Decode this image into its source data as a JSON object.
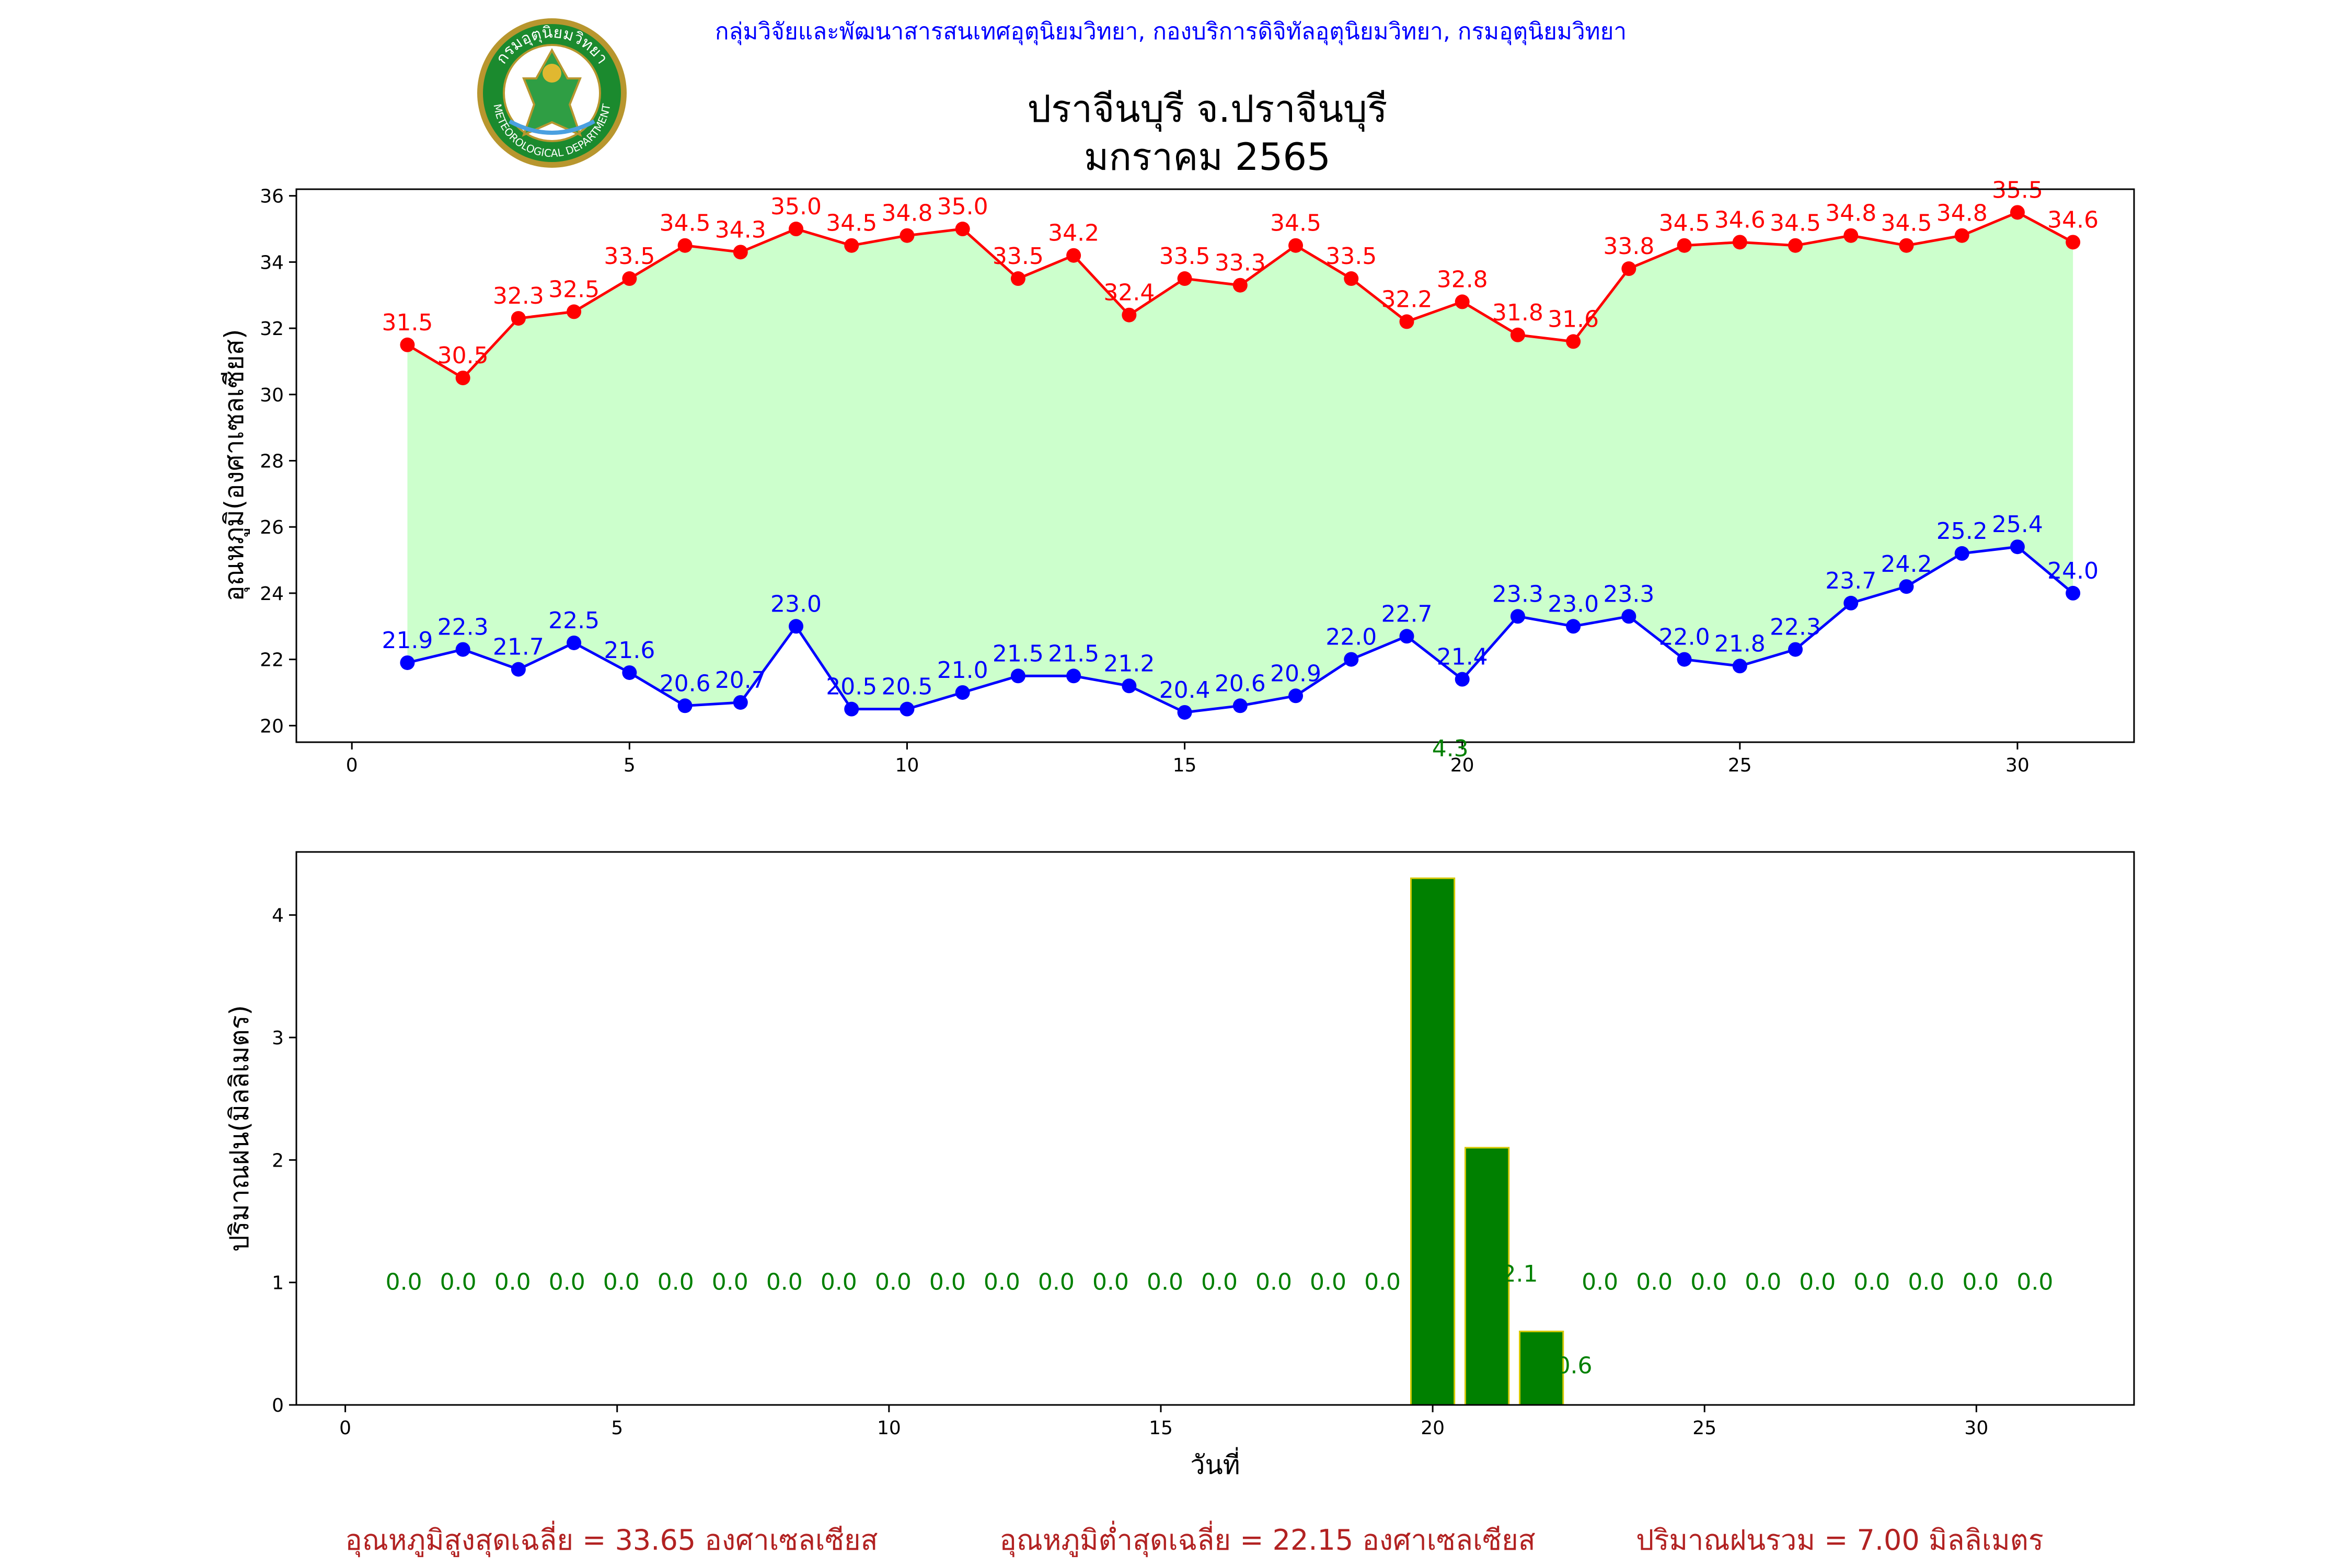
{
  "header": {
    "org_line": "กลุ่มวิจัยและพัฒนาสารสนเทศอุตุนิยมวิทยา, กองบริการดิจิทัลอุตุนิยมวิทยา, กรมอุตุนิยมวิทยา",
    "title_line1": "ปราจีนบุรี จ.ปราจีนบุรี",
    "title_line2": "มกราคม 2565",
    "logo_text_top": "กรมอุตุนิยมวิทยา",
    "logo_text_bottom": "METEOROLOGICAL DEPARTMENT"
  },
  "summary": {
    "avg_max": "อุณหภูมิสูงสุดเฉลี่ย = 33.65 องศาเซลเซียส",
    "avg_min": "อุณหภูมิต่ำสุดเฉลี่ย = 22.15 องศาเซลเซียส",
    "total_rain": "ปริมาณฝนรวม = 7.00 มิลลิเมตร"
  },
  "colors": {
    "max_series": "#ff0000",
    "min_series": "#0000ff",
    "fill_between": "#ccffcc",
    "rain_bar": "#008000",
    "rain_bar_edge": "#d4c800",
    "rain_label": "#008000",
    "header_text": "#0000ff",
    "summary_text": "#b22222"
  },
  "chart_data": [
    {
      "type": "line",
      "title": "ปราจีนบุรี จ.ปราจีนบุรี มกราคม 2565",
      "xlabel": "",
      "ylabel": "อุณหภูมิ(องศาเซลเซียส)",
      "xlim": [
        -1,
        32.1
      ],
      "ylim": [
        19.5,
        36.2
      ],
      "xticks": [
        0,
        5,
        10,
        15,
        20,
        25,
        30
      ],
      "yticks": [
        20,
        22,
        24,
        26,
        28,
        30,
        32,
        34,
        36
      ],
      "x": [
        1,
        2,
        3,
        4,
        5,
        6,
        7,
        8,
        9,
        10,
        11,
        12,
        13,
        14,
        15,
        16,
        17,
        18,
        19,
        20,
        21,
        22,
        23,
        24,
        25,
        26,
        27,
        28,
        29,
        30,
        31
      ],
      "series": [
        {
          "color": "#ff0000",
          "values": [
            31.5,
            30.5,
            32.3,
            32.5,
            33.5,
            34.5,
            34.3,
            35.0,
            34.5,
            34.8,
            35.0,
            33.5,
            34.2,
            32.4,
            33.5,
            33.3,
            34.5,
            33.5,
            32.2,
            32.8,
            31.8,
            31.6,
            33.8,
            34.5,
            34.6,
            34.5,
            34.8,
            34.5,
            34.8,
            35.5,
            34.6
          ]
        },
        {
          "color": "#0000ff",
          "values": [
            21.9,
            22.3,
            21.7,
            22.5,
            21.6,
            20.6,
            20.7,
            23.0,
            20.5,
            20.5,
            21.0,
            21.5,
            21.5,
            21.2,
            20.4,
            20.6,
            20.9,
            22.0,
            22.7,
            21.4,
            23.3,
            23.0,
            23.3,
            22.0,
            21.8,
            22.3,
            23.7,
            24.2,
            25.2,
            25.4,
            24.0
          ]
        }
      ],
      "fill_between": true,
      "grid": false
    },
    {
      "type": "bar",
      "title": "",
      "xlabel": "วันที่",
      "ylabel": "ปริมาณฝน(มิลลิเมตร)",
      "xlim": [
        -0.9,
        32.9
      ],
      "ylim": [
        0,
        4.515
      ],
      "xticks": [
        0,
        5,
        10,
        15,
        20,
        25,
        30
      ],
      "yticks": [
        0,
        1,
        2,
        3,
        4
      ],
      "x": [
        1,
        2,
        3,
        4,
        5,
        6,
        7,
        8,
        9,
        10,
        11,
        12,
        13,
        14,
        15,
        16,
        17,
        18,
        19,
        20,
        21,
        22,
        23,
        24,
        25,
        26,
        27,
        28,
        29,
        30,
        31
      ],
      "values": [
        0.0,
        0.0,
        0.0,
        0.0,
        0.0,
        0.0,
        0.0,
        0.0,
        0.0,
        0.0,
        0.0,
        0.0,
        0.0,
        0.0,
        0.0,
        0.0,
        0.0,
        0.0,
        0.0,
        4.3,
        2.1,
        0.6,
        0.0,
        0.0,
        0.0,
        0.0,
        0.0,
        0.0,
        0.0,
        0.0,
        0.0
      ],
      "labels": [
        "0.0",
        "0.0",
        "0.0",
        "0.0",
        "0.0",
        "0.0",
        "0.0",
        "0.0",
        "0.0",
        "0.0",
        "0.0",
        "0.0",
        "0.0",
        "0.0",
        "0.0",
        "0.0",
        "0.0",
        "0.0",
        "0.0",
        "4.3",
        "2.1",
        "0.6",
        "0.0",
        "0.0",
        "0.0",
        "0.0",
        "0.0",
        "0.0",
        "0.0",
        "0.0",
        "0.0"
      ],
      "grid": false
    }
  ]
}
